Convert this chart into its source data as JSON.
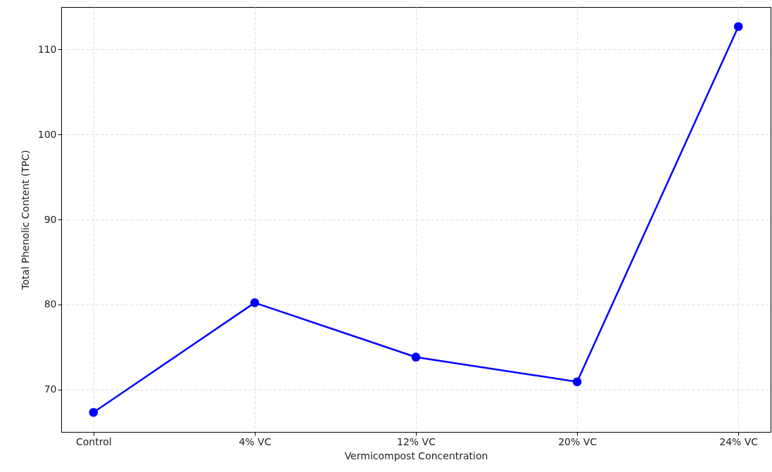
{
  "chart_data": {
    "type": "line",
    "xlabel": "Vermicompost Concentration",
    "ylabel": "Total Phenolic Content (TPC)",
    "categories": [
      "Control",
      "4% VC",
      "12% VC",
      "20% VC",
      "24% VC"
    ],
    "series": [
      {
        "color": "#0000ff",
        "values": [
          67.3,
          80.2,
          73.8,
          70.9,
          112.7
        ]
      }
    ],
    "ylim": [
      65,
      115
    ],
    "yticks": [
      70,
      80,
      90,
      100,
      110
    ],
    "grid": true,
    "marker": "circle",
    "line_style": "solid"
  }
}
